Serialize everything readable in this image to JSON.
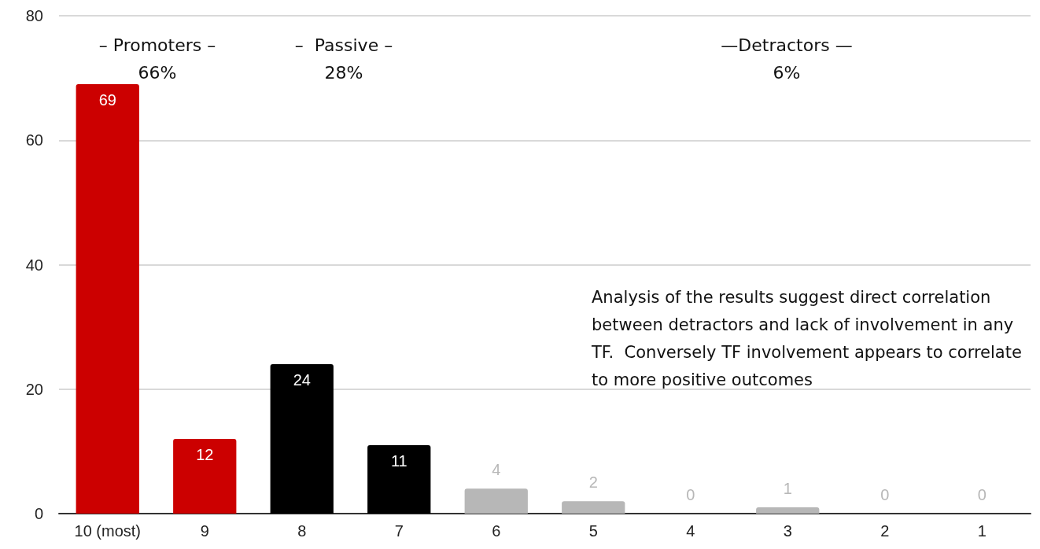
{
  "chart_data": {
    "type": "bar",
    "categories": [
      "10 (most)",
      "9",
      "8",
      "7",
      "6",
      "5",
      "4",
      "3",
      "2",
      "1"
    ],
    "values": [
      69,
      12,
      24,
      11,
      4,
      2,
      0,
      1,
      0,
      0
    ],
    "colors": [
      "#cc0000",
      "#cc0000",
      "#000000",
      "#000000",
      "#b7b7b7",
      "#b7b7b7",
      "#b7b7b7",
      "#b7b7b7",
      "#b7b7b7",
      "#b7b7b7"
    ],
    "ylim": [
      0,
      80
    ],
    "yticks": [
      0,
      20,
      40,
      60,
      80
    ],
    "grid": "y",
    "data_labels": true,
    "annotations": [
      "– Promoters –\n66%",
      "–  Passive –\n28%",
      "—Detractors —\n6%",
      "Analysis of the results suggest direct correlation between detractors and lack of involvement in any TF.  Conversely TF involvement appears to correlate to more positive outcomes"
    ]
  }
}
